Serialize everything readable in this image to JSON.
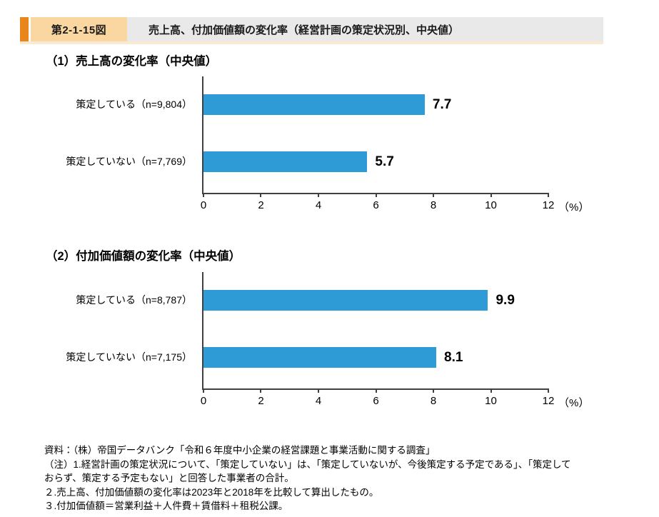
{
  "header": {
    "figure_label": "第2-1-15図",
    "title": "売上高、付加価値額の変化率（経営計画の策定状況別、中央値）",
    "accent_color": "#E8861B",
    "label_bg": "#FAD7A0",
    "title_bg": "#E9E9E9"
  },
  "chart_data": [
    {
      "type": "bar",
      "orientation": "horizontal",
      "title": "（1）売上高の変化率（中央値）",
      "categories": [
        "策定している（n=9,804）",
        "策定していない（n=7,769）"
      ],
      "values": [
        7.7,
        5.7
      ],
      "value_labels": [
        "7.7",
        "5.7"
      ],
      "xlim": [
        0,
        12
      ],
      "xticks": [
        0,
        2,
        4,
        6,
        8,
        10,
        12
      ],
      "xlabel": "（%）",
      "bar_color": "#2E9BD6",
      "axis_color": "#404040",
      "grid": false,
      "legend": "none"
    },
    {
      "type": "bar",
      "orientation": "horizontal",
      "title": "（2）付加価値額の変化率（中央値）",
      "categories": [
        "策定している（n=8,787）",
        "策定していない（n=7,175）"
      ],
      "values": [
        9.9,
        8.1
      ],
      "value_labels": [
        "9.9",
        "8.1"
      ],
      "xlim": [
        0,
        12
      ],
      "xticks": [
        0,
        2,
        4,
        6,
        8,
        10,
        12
      ],
      "xlabel": "（%）",
      "bar_color": "#2E9BD6",
      "axis_color": "#404040",
      "grid": false,
      "legend": "none"
    }
  ],
  "footnotes": {
    "lines": [
      "資料：（株）帝国データバンク「令和６年度中小企業の経営課題と事業活動に関する調査」",
      "（注）1.経営計画の策定状況について、「策定していない」は、「策定していないが、今後策定する予定である」、「策定して",
      "おらず、策定する予定もない」と回答した事業者の合計。",
      "２.売上高、付加価値額の変化率は2023年と2018年を比較して算出したもの。",
      "３.付加価値額＝営業利益＋人件費＋賃借料＋租税公課。"
    ]
  }
}
